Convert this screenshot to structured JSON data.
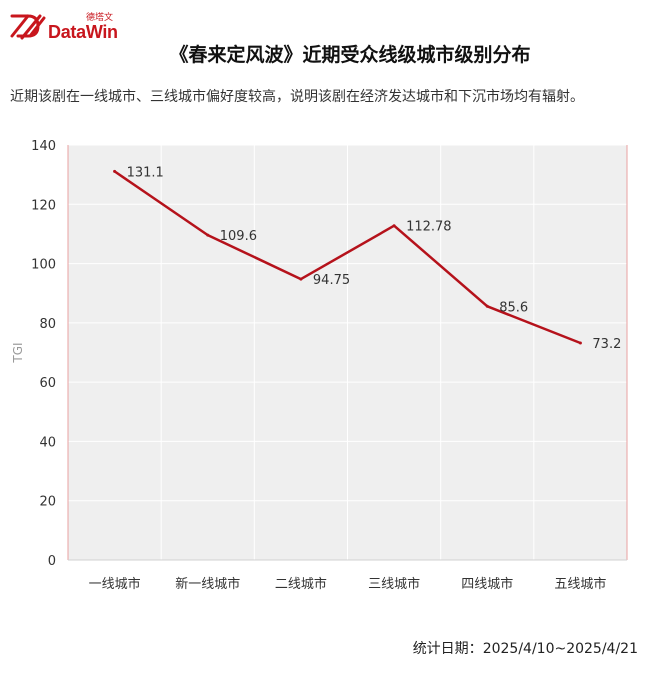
{
  "header": {
    "logo_cn": "德塔文",
    "logo_en": "DataWin",
    "title": "《春来定风波》近期受众线级城市级别分布",
    "subtitle": "近期该剧在一线城市、三线城市偏好度较高，说明该剧在经济发达城市和下沉市场均有辐射。"
  },
  "footer": {
    "label": "统计日期：",
    "range": "2025/4/10~2025/4/21"
  },
  "colors": {
    "line": "#b5121b",
    "plot_bg": "#efefef",
    "grid": "#ffffff",
    "brand": "#c8161d"
  },
  "chart_data": {
    "type": "line",
    "categories": [
      "一线城市",
      "新一线城市",
      "二线城市",
      "三线城市",
      "四线城市",
      "五线城市"
    ],
    "series": [
      {
        "values": [
          131.1,
          109.6,
          94.75,
          112.78,
          85.6,
          73.2
        ]
      }
    ],
    "data_labels": [
      "131.1",
      "109.6",
      "94.75",
      "112.78",
      "85.6",
      "73.2"
    ],
    "ylabel": "TGI",
    "ylim": [
      0,
      140
    ],
    "yticks": [
      0,
      20,
      40,
      60,
      80,
      100,
      120,
      140
    ],
    "grid": true,
    "legend": "none"
  }
}
